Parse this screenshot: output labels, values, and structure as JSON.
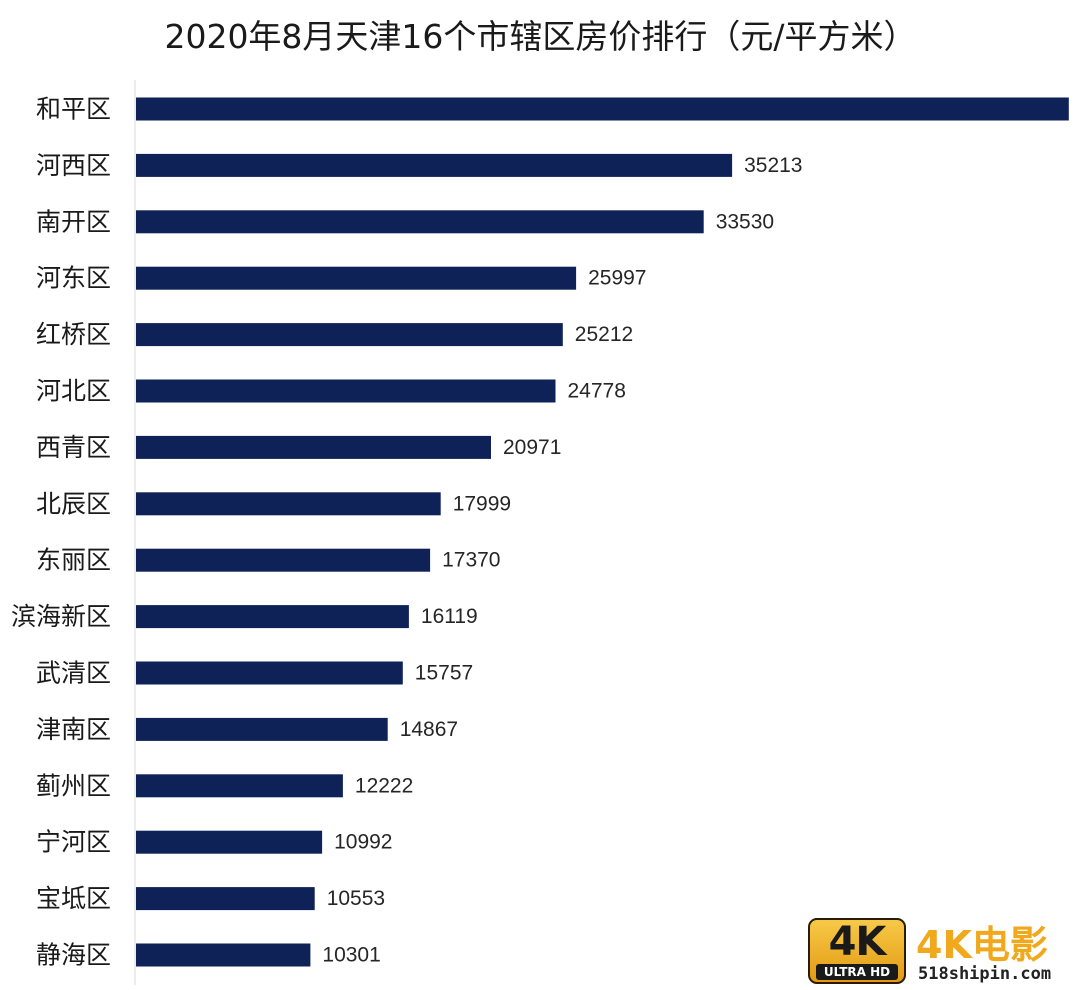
{
  "chart_data": {
    "type": "bar",
    "orientation": "horizontal",
    "title": "2020年8月天津16个市辖区房价排行（元/平方米）",
    "categories": [
      "和平区",
      "河西区",
      "南开区",
      "河东区",
      "红桥区",
      "河北区",
      "西青区",
      "北辰区",
      "东丽区",
      "滨海新区",
      "武清区",
      "津南区",
      "蓟州区",
      "宁河区",
      "宝坻区",
      "静海区"
    ],
    "values": [
      55097,
      35213,
      33530,
      25997,
      25212,
      24778,
      20971,
      17999,
      17370,
      16119,
      15757,
      14867,
      12222,
      10992,
      10553,
      10301
    ],
    "xlim": [
      0,
      57000
    ],
    "bar_color": "#0f2257",
    "data_labels": true,
    "grid": false
  },
  "watermark": {
    "badge_big": "4K",
    "badge_small": "ULTRA HD",
    "name": "4K电影",
    "url": "518shipin.com"
  }
}
